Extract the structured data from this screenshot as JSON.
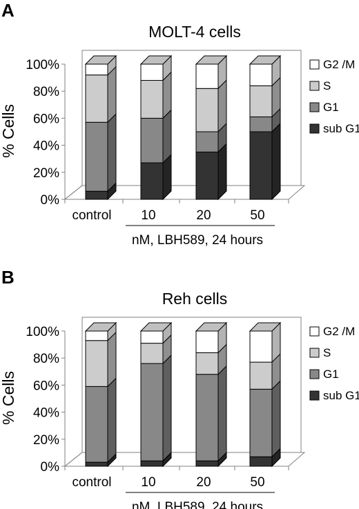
{
  "chart_data": [
    {
      "panel_label": "A",
      "type": "bar",
      "stacked": true,
      "three_d": true,
      "title": "MOLT-4 cells",
      "ylabel": "% Cells",
      "xlabel": "nM, LBH589, 24 hours",
      "ylim": [
        0,
        100
      ],
      "yticks": [
        "0%",
        "20%",
        "40%",
        "60%",
        "80%",
        "100%"
      ],
      "categories": [
        "control",
        "10",
        "20",
        "50"
      ],
      "legend_position": "right",
      "series": [
        {
          "name": "sub G1",
          "color": "#333333",
          "values": [
            6,
            27,
            35,
            50
          ]
        },
        {
          "name": "G1",
          "color": "#888888",
          "values": [
            51,
            33,
            15,
            11
          ]
        },
        {
          "name": "S",
          "color": "#cccccc",
          "values": [
            35,
            28,
            32,
            23
          ]
        },
        {
          "name": "G2 /M",
          "color": "#ffffff",
          "values": [
            8,
            12,
            18,
            16
          ]
        }
      ]
    },
    {
      "panel_label": "B",
      "type": "bar",
      "stacked": true,
      "three_d": true,
      "title": "Reh cells",
      "ylabel": "% Cells",
      "xlabel": "nM, LBH589, 24 hours",
      "ylim": [
        0,
        100
      ],
      "yticks": [
        "0%",
        "20%",
        "40%",
        "60%",
        "80%",
        "100%"
      ],
      "categories": [
        "control",
        "10",
        "20",
        "50"
      ],
      "legend_position": "right",
      "series": [
        {
          "name": "sub G1",
          "color": "#333333",
          "values": [
            3,
            4,
            4,
            7
          ]
        },
        {
          "name": "G1",
          "color": "#888888",
          "values": [
            56,
            72,
            64,
            50
          ]
        },
        {
          "name": "S",
          "color": "#cccccc",
          "values": [
            34,
            15,
            16,
            20
          ]
        },
        {
          "name": "G2 /M",
          "color": "#ffffff",
          "values": [
            7,
            9,
            16,
            23
          ]
        }
      ]
    }
  ]
}
